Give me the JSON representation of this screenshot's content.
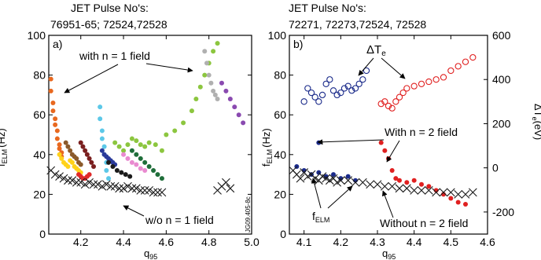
{
  "chart_data": [
    {
      "type": "scatter",
      "header_line1": "JET Pulse No's:",
      "header_line2": "76951-65; 72524,72528",
      "panel_label": "a)",
      "ylabel_main": "f",
      "ylabel_sub": "ELM",
      "ylabel_unit": "(Hz)",
      "xlabel_main": "q",
      "xlabel_sub": "95",
      "xlim": [
        4.05,
        5.0
      ],
      "ylim": [
        0,
        100
      ],
      "xticks": [
        "4.2",
        "4.4",
        "4.6",
        "4.8",
        "5.0"
      ],
      "yticks": [
        "0",
        "20",
        "40",
        "60",
        "80",
        "100"
      ],
      "annotations": {
        "with_field": "with n = 1 field",
        "without_field": "w/o n = 1 field",
        "figure_code": "JG09.405-8c"
      },
      "colors": [
        "#e8681f",
        "#ffd21a",
        "#8b5a2b",
        "#7a1f1f",
        "#e02a2a",
        "#5cc8e8",
        "#2a3a9a",
        "#8cc63f",
        "#e98ad0",
        "#1a1a1a",
        "#1f6e3a",
        "#b0b0b0",
        "#8a4ab0"
      ],
      "series": [
        {
          "color": "#e8681f",
          "marker": "dot",
          "x": [
            4.06,
            4.06,
            4.07,
            4.07,
            4.08,
            4.08,
            4.09,
            4.09,
            4.1,
            4.1,
            4.11,
            4.11
          ],
          "y": [
            78,
            72,
            66,
            62,
            58,
            55,
            52,
            48,
            45,
            43,
            41,
            39
          ]
        },
        {
          "color": "#ffd21a",
          "marker": "dot",
          "x": [
            4.1,
            4.11,
            4.12,
            4.13,
            4.14,
            4.15,
            4.16,
            4.17,
            4.18,
            4.19,
            4.2
          ],
          "y": [
            40,
            38,
            36,
            35,
            34,
            37,
            36,
            34,
            33,
            32,
            31
          ]
        },
        {
          "color": "#8b5a2b",
          "marker": "dot",
          "x": [
            4.13,
            4.14,
            4.15,
            4.16,
            4.17,
            4.18,
            4.19,
            4.2
          ],
          "y": [
            46,
            44,
            42,
            40,
            39,
            38,
            36,
            35
          ]
        },
        {
          "color": "#7a1f1f",
          "marker": "dot",
          "x": [
            4.2,
            4.21,
            4.22,
            4.23,
            4.24,
            4.25,
            4.26
          ],
          "y": [
            46,
            44,
            42,
            40,
            38,
            36,
            34
          ]
        },
        {
          "color": "#e02a2a",
          "marker": "dot",
          "x": [
            4.19,
            4.2,
            4.21,
            4.22,
            4.23,
            4.24
          ],
          "y": [
            30,
            29,
            28,
            28,
            29,
            30
          ]
        },
        {
          "color": "#5cc8e8",
          "marker": "dot",
          "x": [
            4.29,
            4.29,
            4.3,
            4.3,
            4.31,
            4.31,
            4.32,
            4.32,
            4.33
          ],
          "y": [
            64,
            58,
            52,
            48,
            44,
            40,
            36,
            32,
            28
          ]
        },
        {
          "color": "#2a3a9a",
          "marker": "dot",
          "x": [
            4.3,
            4.31,
            4.32,
            4.33,
            4.34,
            4.35,
            4.36
          ],
          "y": [
            42,
            40,
            39,
            38,
            37,
            36,
            35
          ]
        },
        {
          "color": "#8cc63f",
          "marker": "dot",
          "x": [
            4.36,
            4.38,
            4.4,
            4.42,
            4.44,
            4.46,
            4.48,
            4.5,
            4.52,
            4.55,
            4.58
          ],
          "y": [
            46,
            44,
            42,
            45,
            48,
            47,
            45,
            44,
            46,
            45,
            42
          ]
        },
        {
          "color": "#e98ad0",
          "marker": "dot",
          "x": [
            4.4,
            4.42,
            4.44,
            4.46,
            4.48,
            4.5
          ],
          "y": [
            40,
            38,
            36,
            35,
            33,
            32
          ]
        },
        {
          "color": "#1a1a1a",
          "marker": "dot",
          "x": [
            4.33,
            4.35,
            4.37,
            4.39,
            4.41,
            4.43
          ],
          "y": [
            36,
            34,
            32,
            31,
            30,
            29
          ]
        },
        {
          "color": "#1f6e3a",
          "marker": "dot",
          "x": [
            4.44,
            4.46,
            4.48,
            4.5,
            4.52,
            4.54,
            4.56,
            4.58
          ],
          "y": [
            42,
            40,
            38,
            36,
            34,
            32,
            30,
            28
          ]
        },
        {
          "color": "#8cc63f",
          "marker": "dot",
          "x": [
            4.6,
            4.64,
            4.68,
            4.72,
            4.74,
            4.76,
            4.78,
            4.8,
            4.82,
            4.84
          ],
          "y": [
            50,
            52,
            56,
            62,
            68,
            74,
            80,
            86,
            92,
            96
          ]
        },
        {
          "color": "#b0b0b0",
          "marker": "dot",
          "x": [
            4.78,
            4.79,
            4.8,
            4.81,
            4.82,
            4.83,
            4.84
          ],
          "y": [
            92,
            86,
            80,
            76,
            72,
            70,
            68
          ]
        },
        {
          "color": "#8a4ab0",
          "marker": "dot",
          "x": [
            4.86,
            4.88,
            4.9,
            4.92,
            4.94,
            4.96
          ],
          "y": [
            76,
            72,
            68,
            64,
            60,
            56
          ]
        },
        {
          "color": "#1a1a1a",
          "marker": "x",
          "x": [
            4.06,
            4.08,
            4.1,
            4.12,
            4.14,
            4.16,
            4.18,
            4.2,
            4.22,
            4.24,
            4.26,
            4.28,
            4.3,
            4.32,
            4.34,
            4.36,
            4.38,
            4.4,
            4.42,
            4.44,
            4.46,
            4.48,
            4.5,
            4.52,
            4.54,
            4.56,
            4.58,
            4.84,
            4.86,
            4.88,
            4.9
          ],
          "y": [
            32,
            30,
            29,
            28,
            27,
            27,
            26,
            26,
            25,
            26,
            25,
            25,
            24,
            25,
            24,
            24,
            23,
            23,
            24,
            23,
            23,
            22,
            22,
            22,
            21,
            21,
            21,
            22,
            24,
            26,
            23
          ]
        }
      ]
    },
    {
      "type": "scatter",
      "header_line1": "JET Pulse No's:",
      "header_line2": "72271, 72273,72524, 72528",
      "panel_label": "b)",
      "ylabel_main": "f",
      "ylabel_sub": "ELM",
      "ylabel_unit": "(Hz)",
      "ylabel_right_main": "ΔT",
      "ylabel_right_sub": "e",
      "ylabel_right_unit": "(eV)",
      "xlabel_main": "q",
      "xlabel_sub": "95",
      "xlim": [
        4.06,
        4.6
      ],
      "ylim": [
        0,
        100
      ],
      "ylim_right": [
        -300,
        600
      ],
      "xticks": [
        "4.1",
        "4.2",
        "4.3",
        "4.4",
        "4.5",
        "4.6"
      ],
      "yticks": [
        "0",
        "20",
        "40",
        "60",
        "80",
        "100"
      ],
      "yticks_right": [
        "-200",
        "0",
        "200",
        "400",
        "600"
      ],
      "annotations": {
        "delta_te_main": "ΔT",
        "delta_te_sub": "e",
        "with_field": "With n = 2 field",
        "without_field": "Without n = 2 field",
        "felm_main": "f",
        "felm_sub": "ELM"
      },
      "colors": [
        "#1a2a8a",
        "#e02020",
        "#1a1a1a"
      ],
      "series": [
        {
          "color": "#1a2a8a",
          "marker": "open",
          "axis": "right",
          "x": [
            4.1,
            4.11,
            4.12,
            4.13,
            4.14,
            4.15,
            4.16,
            4.17,
            4.18,
            4.19,
            4.2,
            4.21,
            4.22,
            4.23,
            4.24,
            4.25,
            4.26,
            4.27
          ],
          "y": [
            300,
            360,
            340,
            320,
            300,
            330,
            380,
            400,
            350,
            330,
            340,
            360,
            370,
            350,
            360,
            380,
            400,
            440
          ]
        },
        {
          "color": "#e02020",
          "marker": "open",
          "axis": "right",
          "x": [
            4.31,
            4.32,
            4.33,
            4.34,
            4.35,
            4.36,
            4.37,
            4.38,
            4.4,
            4.42,
            4.44,
            4.46,
            4.48,
            4.5,
            4.52,
            4.54,
            4.56
          ],
          "y": [
            290,
            300,
            280,
            270,
            300,
            320,
            340,
            360,
            370,
            380,
            390,
            400,
            410,
            440,
            460,
            480,
            500
          ]
        },
        {
          "color": "#1a2a8a",
          "marker": "dot",
          "axis": "left",
          "x": [
            4.08,
            4.1,
            4.12,
            4.14,
            4.16,
            4.18,
            4.2,
            4.22,
            4.24,
            4.14
          ],
          "y": [
            34,
            32,
            30,
            31,
            29,
            30,
            28,
            29,
            27,
            46
          ]
        },
        {
          "color": "#e02020",
          "marker": "dot",
          "axis": "left",
          "x": [
            4.31,
            4.32,
            4.33,
            4.34,
            4.35,
            4.36,
            4.38,
            4.4,
            4.42,
            4.44,
            4.46,
            4.48,
            4.5,
            4.52,
            4.54
          ],
          "y": [
            46,
            42,
            38,
            32,
            28,
            27,
            26,
            27,
            25,
            24,
            22,
            20,
            18,
            16,
            15
          ]
        },
        {
          "color": "#1a1a1a",
          "marker": "x",
          "axis": "left",
          "x": [
            4.07,
            4.08,
            4.09,
            4.1,
            4.11,
            4.12,
            4.13,
            4.14,
            4.15,
            4.16,
            4.17,
            4.18,
            4.19,
            4.2,
            4.22,
            4.24,
            4.26,
            4.28,
            4.3,
            4.32,
            4.34,
            4.36,
            4.38,
            4.4,
            4.42,
            4.44,
            4.46,
            4.48,
            4.5,
            4.52,
            4.54,
            4.56
          ],
          "y": [
            32,
            30,
            28,
            31,
            29,
            30,
            28,
            27,
            29,
            28,
            27,
            28,
            26,
            27,
            27,
            26,
            26,
            25,
            25,
            24,
            24,
            23,
            23,
            22,
            22,
            22,
            21,
            21,
            21,
            20,
            20,
            21
          ]
        }
      ]
    }
  ]
}
